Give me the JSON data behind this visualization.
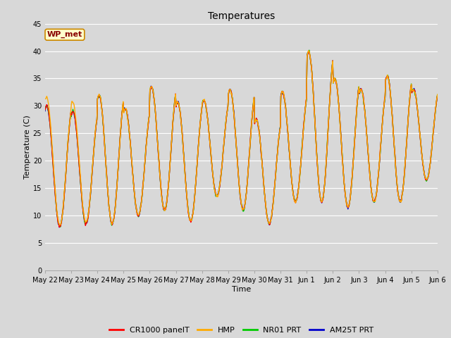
{
  "title": "Temperatures",
  "xlabel": "Time",
  "ylabel": "Temperature (C)",
  "ylim": [
    0,
    45
  ],
  "yticks": [
    0,
    5,
    10,
    15,
    20,
    25,
    30,
    35,
    40,
    45
  ],
  "fig_bg_color": "#d8d8d8",
  "plot_bg_color": "#d8d8d8",
  "annotation_text": "WP_met",
  "annotation_bg": "#ffffcc",
  "annotation_border": "#cc8800",
  "annotation_text_color": "#880000",
  "series_colors": [
    "#ff0000",
    "#ffaa00",
    "#00cc00",
    "#0000cc"
  ],
  "series_labels": [
    "CR1000 panelT",
    "HMP",
    "NR01 PRT",
    "AM25T PRT"
  ],
  "x_tick_labels": [
    "May 22",
    "May 23",
    "May 24",
    "May 25",
    "May 26",
    "May 27",
    "May 28",
    "May 29",
    "May 30",
    "May 31",
    "Jun 1",
    "Jun 2",
    "Jun 3",
    "Jun 4",
    "Jun 5",
    "Jun 6"
  ],
  "n_days": 15,
  "pts_per_day": 48,
  "day_peaks": [
    30,
    29,
    32,
    29.5,
    33.5,
    30.7,
    31,
    33,
    27.5,
    32.5,
    40,
    35,
    33,
    35.5,
    33
  ],
  "day_mins": [
    8,
    8.5,
    8.5,
    10,
    11,
    9,
    13.5,
    11,
    8.5,
    12.5,
    12.5,
    11.5,
    12.5,
    12.5,
    16.5
  ],
  "title_fontsize": 10,
  "axis_label_fontsize": 8,
  "tick_fontsize": 7,
  "legend_fontsize": 8,
  "linewidth": 1.0
}
